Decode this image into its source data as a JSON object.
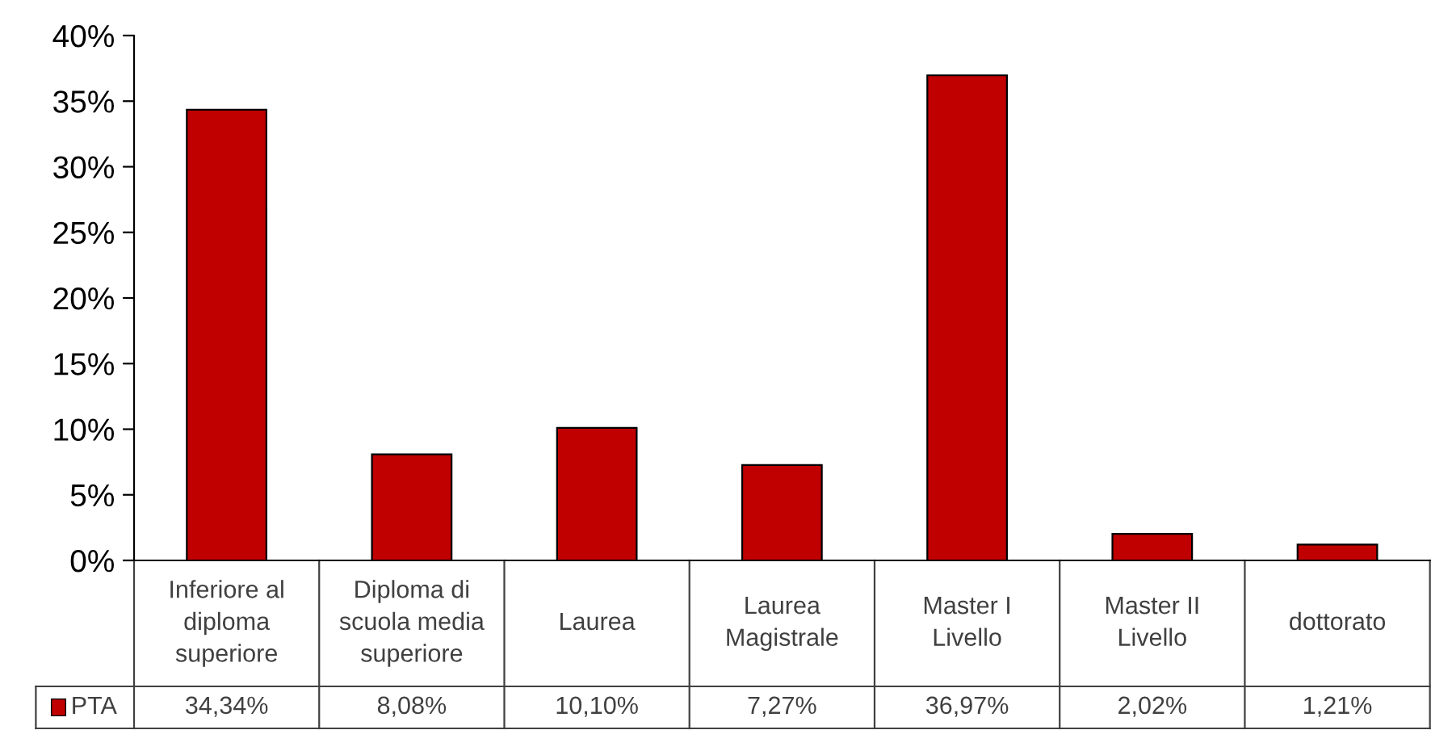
{
  "chart_data": {
    "type": "bar",
    "categories": [
      "Inferiore al\ndiploma\nsuperiore",
      "Diploma di\nscuola media\nsuperiore",
      "Laurea",
      "Laurea\nMagistrale",
      "Master I\nLivello",
      "Master II\nLivello",
      "dottorato"
    ],
    "series": [
      {
        "name": "PTA",
        "color": "#c00000",
        "values": [
          34.34,
          8.08,
          10.1,
          7.27,
          36.97,
          2.02,
          1.21
        ],
        "value_labels": [
          "34,34%",
          "8,08%",
          "10,10%",
          "7,27%",
          "36,97%",
          "2,02%",
          "1,21%"
        ]
      }
    ],
    "ylim": [
      0,
      40
    ],
    "yticks": [
      {
        "value": 0,
        "label": "0%"
      },
      {
        "value": 5,
        "label": "5%"
      },
      {
        "value": 10,
        "label": "10%"
      },
      {
        "value": 15,
        "label": "15%"
      },
      {
        "value": 20,
        "label": "20%"
      },
      {
        "value": 25,
        "label": "25%"
      },
      {
        "value": 30,
        "label": "30%"
      },
      {
        "value": 35,
        "label": "35%"
      },
      {
        "value": 40,
        "label": "40%"
      }
    ],
    "grid": false
  }
}
